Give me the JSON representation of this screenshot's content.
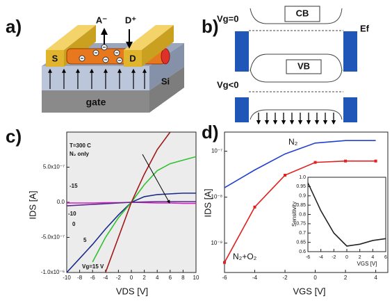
{
  "panel_labels": [
    "a)",
    "b)",
    "c)",
    "d)"
  ],
  "diagram_a": {
    "anion": "A⁻",
    "donor": "D⁺",
    "source": "S",
    "drain": "D",
    "substrate": "Si",
    "gate": "gate"
  },
  "diagram_b": {
    "top_gate": "Vg=0",
    "conduction_band": "CB",
    "fermi": "Ef",
    "valence_band": "VB",
    "bottom_gate": "Vg<0"
  },
  "chart_data": [
    {
      "type": "line",
      "xlabel": "VDS [V]",
      "ylabel": "IDS [A]",
      "annotations": [
        "T=300 C",
        "N₂ only"
      ],
      "x": [
        -10,
        -8,
        -6,
        -4,
        -2,
        0,
        2,
        4,
        6,
        8,
        10
      ],
      "series": [
        {
          "name": "-15",
          "color": "#d020c0",
          "values": [
            -1e-08,
            -1e-08,
            -1e-08,
            -5e-09,
            -5e-09,
            0,
            -5e-09,
            -1e-08,
            -1e-08,
            -1.5e-08,
            -1.5e-08
          ]
        },
        {
          "name": "-10",
          "color": "#5a2a8a",
          "values": [
            -5e-08,
            -4e-08,
            -3e-08,
            -2e-08,
            -1e-08,
            0,
            5e-09,
            1e-08,
            1e-08,
            1e-08,
            1e-08
          ]
        },
        {
          "name": "0",
          "color": "#1a2a8a",
          "values": [
            -1e-06,
            -8e-07,
            -6e-07,
            -3.8e-07,
            -1.8e-07,
            0,
            8e-08,
            1.1e-07,
            1.2e-07,
            1.3e-07,
            1.3e-07
          ]
        },
        {
          "name": "5",
          "color": "#30c030",
          "values": [
            null,
            null,
            -8.5e-07,
            -5e-07,
            -2.2e-07,
            0,
            2.5e-07,
            4.5e-07,
            5.5e-07,
            6e-07,
            6.5e-07
          ]
        },
        {
          "name": "Vg=15 V",
          "color": "#a01818",
          "values": [
            null,
            null,
            null,
            -1e-06,
            -5e-07,
            0,
            4e-07,
            7.5e-07,
            1e-06,
            null,
            null
          ]
        }
      ],
      "xlim": [
        -10,
        10
      ],
      "xticks": [
        -10,
        -8,
        -6,
        -4,
        -2,
        0,
        2,
        4,
        6,
        8,
        10
      ],
      "ylim": [
        -1e-06,
        1e-06
      ],
      "yticks": [
        {
          "value": -1e-06,
          "label": "-1.0x10⁻⁶"
        },
        {
          "value": -5e-07,
          "label": "-5.0x10⁻⁷"
        },
        {
          "value": 0,
          "label": "0.0"
        },
        {
          "value": 5e-07,
          "label": "5.0x10⁻⁷"
        }
      ]
    },
    {
      "type": "line",
      "xlabel": "VGS [V]",
      "ylabel": "IDS [A]",
      "yscale": "log",
      "x": [
        -6,
        -4,
        -2,
        0,
        2,
        4
      ],
      "series": [
        {
          "name": "N₂",
          "color": "#2040d0",
          "values": [
            1.6e-08,
            3.9e-08,
            8.7e-08,
            1.5e-07,
            1.7e-07,
            1.7e-07
          ]
        },
        {
          "name": "N₂+O₂",
          "color": "#e02020",
          "marker": "square",
          "values": [
            3.8e-10,
            6.1e-09,
            3e-08,
            5.7e-08,
            6.1e-08,
            6.1e-08
          ]
        }
      ],
      "xlim": [
        -6,
        4.8
      ],
      "xticks": [
        -6,
        -4,
        -2,
        0,
        2,
        4
      ],
      "ylim": [
        2.3e-10,
        2.6e-07
      ],
      "yticks": [
        {
          "value": 1e-09,
          "label": "10⁻⁹"
        },
        {
          "value": 1e-08,
          "label": "10⁻⁸"
        },
        {
          "value": 1e-07,
          "label": "10⁻⁷"
        }
      ]
    },
    {
      "type": "line",
      "xlabel": "VGS [V]",
      "ylabel": "Sensitivity",
      "x": [
        -6,
        -4,
        -2,
        0,
        2,
        4,
        6
      ],
      "series": [
        {
          "color": "#222",
          "values": [
            0.97,
            0.82,
            0.7,
            0.63,
            0.64,
            0.66,
            0.67
          ]
        }
      ],
      "xlim": [
        -6,
        6
      ],
      "xticks": [
        -6,
        -4,
        -2,
        0,
        2,
        4,
        6
      ],
      "ylim": [
        0.6,
        1
      ],
      "yticks": [
        0.6,
        0.65,
        0.7,
        0.75,
        0.8,
        0.85,
        0.9,
        0.95,
        {
          "value": 1,
          "label": "1.0"
        }
      ]
    }
  ]
}
